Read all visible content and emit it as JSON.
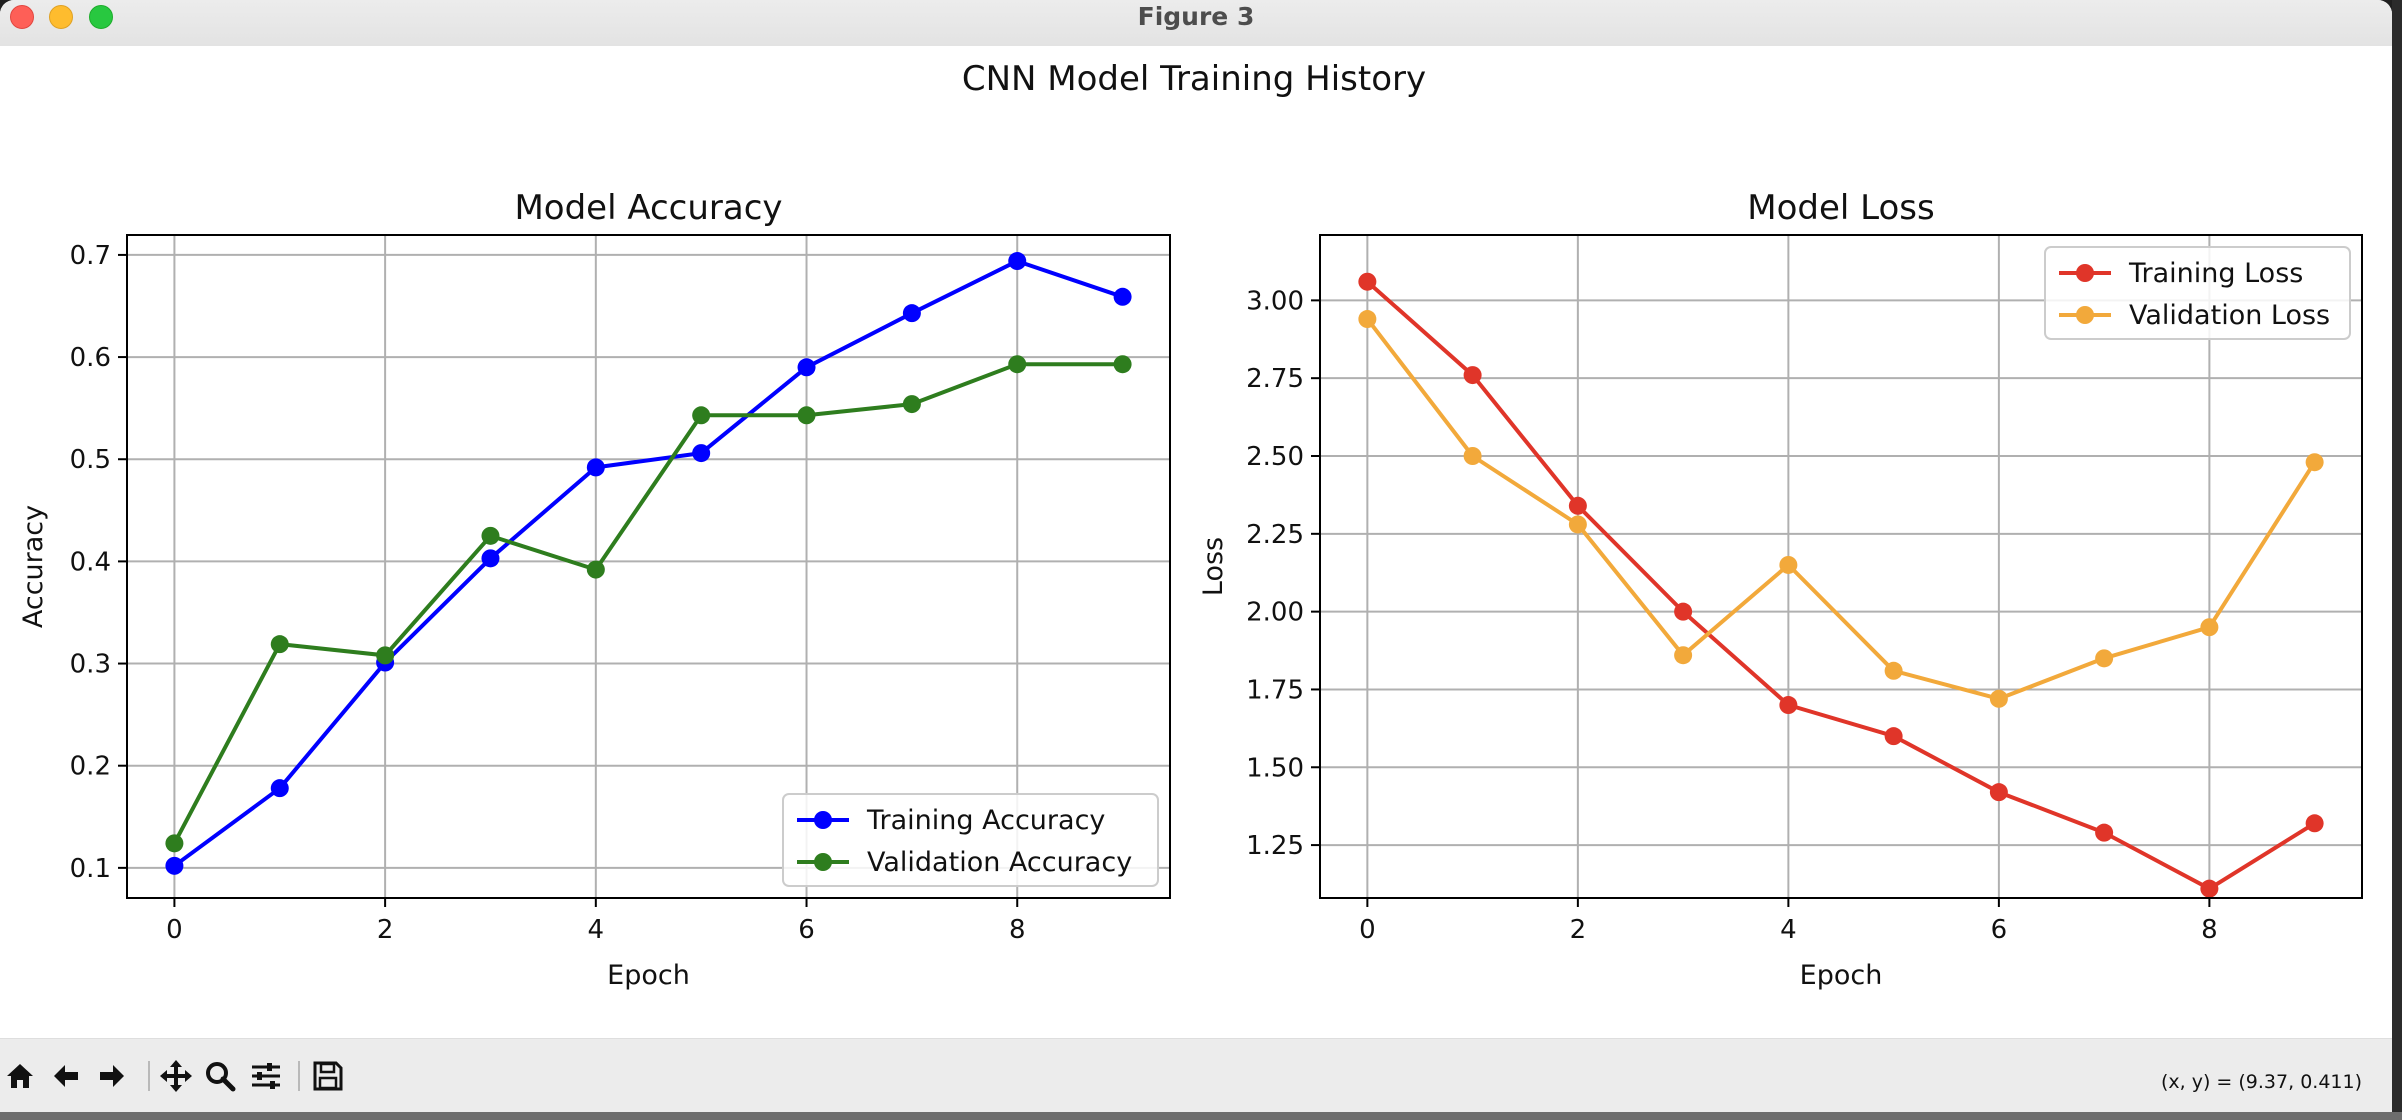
{
  "window": {
    "title": "Figure 3"
  },
  "figure": {
    "suptitle": "CNN Model Training History"
  },
  "toolbar": {
    "buttons": [
      {
        "name": "home-icon",
        "label": "Home"
      },
      {
        "name": "back-icon",
        "label": "Back"
      },
      {
        "name": "forward-icon",
        "label": "Forward"
      },
      {
        "name": "pan-icon",
        "label": "Pan"
      },
      {
        "name": "zoom-icon",
        "label": "Zoom"
      },
      {
        "name": "configure-subplots-icon",
        "label": "Configure subplots"
      },
      {
        "name": "save-icon",
        "label": "Save"
      }
    ],
    "coords": "(x, y) = (9.37, 0.411)"
  },
  "chart_data": [
    {
      "type": "line",
      "title": "Model Accuracy",
      "xlabel": "Epoch",
      "ylabel": "Accuracy",
      "xlim": [
        -0.45,
        9.45
      ],
      "ylim": [
        0.0705,
        0.7195
      ],
      "xticks": [
        0,
        2,
        4,
        6,
        8
      ],
      "yticks": [
        0.1,
        0.2,
        0.3,
        0.4,
        0.5,
        0.6,
        0.7
      ],
      "ytick_labels": [
        "0.1",
        "0.2",
        "0.3",
        "0.4",
        "0.5",
        "0.6",
        "0.7"
      ],
      "grid": true,
      "legend": "lower-right",
      "x": [
        0,
        1,
        2,
        3,
        4,
        5,
        6,
        7,
        8,
        9
      ],
      "series": [
        {
          "name": "Training Accuracy",
          "color": "#0000ff",
          "values": [
            0.102,
            0.178,
            0.301,
            0.403,
            0.492,
            0.506,
            0.59,
            0.643,
            0.694,
            0.659
          ]
        },
        {
          "name": "Validation Accuracy",
          "color": "#2e7d1e",
          "values": [
            0.124,
            0.319,
            0.308,
            0.425,
            0.392,
            0.543,
            0.543,
            0.554,
            0.593,
            0.593
          ]
        }
      ]
    },
    {
      "type": "line",
      "title": "Model Loss",
      "xlabel": "Epoch",
      "ylabel": "Loss",
      "xlim": [
        -0.45,
        9.45
      ],
      "ylim": [
        1.08,
        3.21
      ],
      "xticks": [
        0,
        2,
        4,
        6,
        8
      ],
      "yticks": [
        1.25,
        1.5,
        1.75,
        2.0,
        2.25,
        2.5,
        2.75,
        3.0
      ],
      "ytick_labels": [
        "1.25",
        "1.50",
        "1.75",
        "2.00",
        "2.25",
        "2.50",
        "2.75",
        "3.00"
      ],
      "grid": true,
      "legend": "upper-right",
      "x": [
        0,
        1,
        2,
        3,
        4,
        5,
        6,
        7,
        8,
        9
      ],
      "series": [
        {
          "name": "Training Loss",
          "color": "#e03529",
          "values": [
            3.06,
            2.76,
            2.34,
            2.0,
            1.7,
            1.6,
            1.42,
            1.29,
            1.11,
            1.32
          ]
        },
        {
          "name": "Validation Loss",
          "color": "#f2a93b",
          "values": [
            2.94,
            2.5,
            2.28,
            1.86,
            2.15,
            1.81,
            1.72,
            1.85,
            1.95,
            2.48
          ]
        }
      ]
    }
  ]
}
